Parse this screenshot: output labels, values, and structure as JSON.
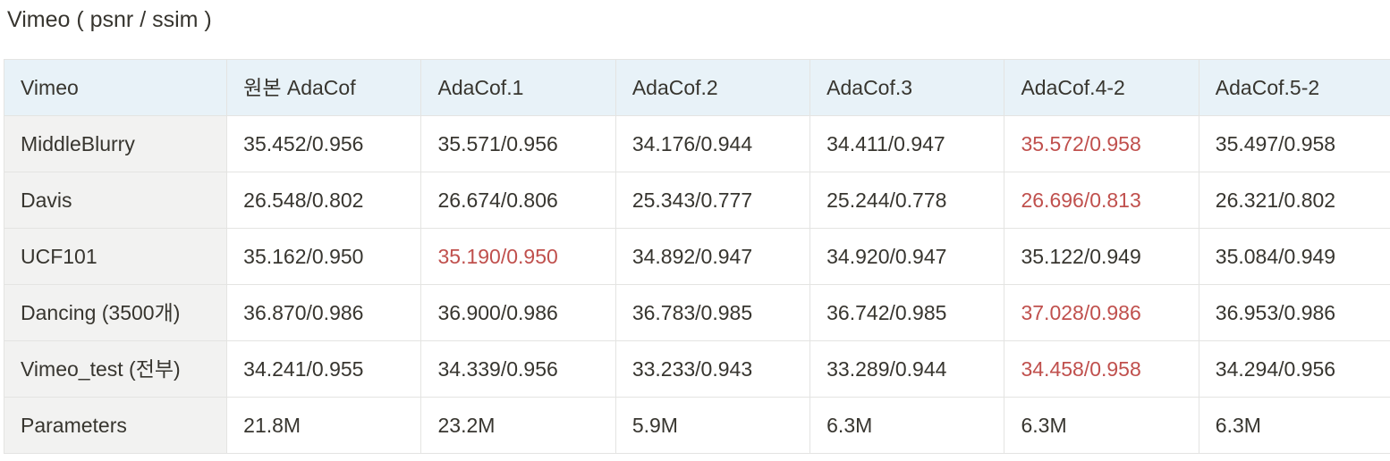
{
  "page": {
    "title": "Vimeo ( psnr / ssim )"
  },
  "colors": {
    "header_bg": "#e8f2f8",
    "label_column_bg": "#f2f2f1",
    "best_value_text": "#c0504d",
    "text": "#37352f",
    "border": "#e4e4e2"
  },
  "table": {
    "corner_label": "Vimeo",
    "columns": [
      "원본 AdaCof",
      "AdaCof.1",
      "AdaCof.2",
      "AdaCof.3",
      "AdaCof.4-2",
      "AdaCof.5-2"
    ],
    "rows": [
      {
        "label": "MiddleBlurry",
        "cells": [
          "35.452/0.956",
          "35.571/0.956",
          "34.176/0.944",
          "34.411/0.947",
          "35.572/0.958",
          "35.497/0.958"
        ],
        "highlight": [
          false,
          false,
          false,
          false,
          true,
          false
        ]
      },
      {
        "label": "Davis",
        "cells": [
          "26.548/0.802",
          "26.674/0.806",
          "25.343/0.777",
          "25.244/0.778",
          "26.696/0.813",
          "26.321/0.802"
        ],
        "highlight": [
          false,
          false,
          false,
          false,
          true,
          false
        ]
      },
      {
        "label": "UCF101",
        "cells": [
          "35.162/0.950",
          "35.190/0.950",
          "34.892/0.947",
          "34.920/0.947",
          "35.122/0.949",
          "35.084/0.949"
        ],
        "highlight": [
          false,
          true,
          false,
          false,
          false,
          false
        ]
      },
      {
        "label": "Dancing (3500개)",
        "cells": [
          "36.870/0.986",
          "36.900/0.986",
          "36.783/0.985",
          "36.742/0.985",
          "37.028/0.986",
          "36.953/0.986"
        ],
        "highlight": [
          false,
          false,
          false,
          false,
          true,
          false
        ]
      },
      {
        "label": "Vimeo_test (전부)",
        "cells": [
          "34.241/0.955",
          "34.339/0.956",
          "33.233/0.943",
          "33.289/0.944",
          "34.458/0.958",
          "34.294/0.956"
        ],
        "highlight": [
          false,
          false,
          false,
          false,
          true,
          false
        ]
      },
      {
        "label": "Parameters",
        "cells": [
          "21.8M",
          "23.2M",
          "5.9M",
          "6.3M",
          "6.3M",
          "6.3M"
        ],
        "highlight": [
          false,
          false,
          false,
          false,
          false,
          false
        ]
      }
    ]
  }
}
